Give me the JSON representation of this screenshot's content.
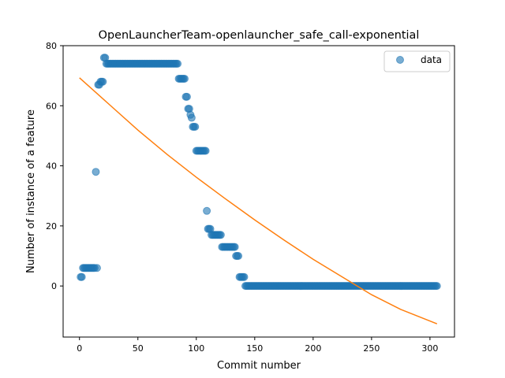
{
  "chart_data": {
    "type": "scatter",
    "title": "OpenLauncherTeam-openlauncher_safe_call-exponential",
    "xlabel": "Commit number",
    "ylabel": "Number of instance of a feature",
    "xlim": [
      -14,
      321
    ],
    "ylim": [
      -17,
      80
    ],
    "xticks": [
      0,
      50,
      100,
      150,
      200,
      250,
      300
    ],
    "yticks": [
      0,
      20,
      40,
      60,
      80
    ],
    "grid": false,
    "legend": {
      "position": "top-right",
      "entries": [
        "data"
      ]
    },
    "colors": {
      "data": "#1f77b4",
      "fit": "#ff7f0e"
    },
    "series": [
      {
        "name": "data",
        "kind": "points",
        "segments": [
          {
            "x_from": 1,
            "x_to": 2,
            "y": 3
          },
          {
            "x_from": 3,
            "x_to": 13,
            "y": 6
          },
          {
            "x_from": 14,
            "x_to": 14,
            "y": 38
          },
          {
            "x_from": 15,
            "x_to": 15,
            "y": 6
          },
          {
            "x_from": 16,
            "x_to": 17,
            "y": 67
          },
          {
            "x_from": 18,
            "x_to": 20,
            "y": 68
          },
          {
            "x_from": 21,
            "x_to": 22,
            "y": 76
          },
          {
            "x_from": 23,
            "x_to": 84,
            "y": 74
          },
          {
            "x_from": 85,
            "x_to": 90,
            "y": 69
          },
          {
            "x_from": 91,
            "x_to": 92,
            "y": 63
          },
          {
            "x_from": 93,
            "x_to": 94,
            "y": 59
          },
          {
            "x_from": 95,
            "x_to": 95,
            "y": 57
          },
          {
            "x_from": 96,
            "x_to": 96,
            "y": 56
          },
          {
            "x_from": 97,
            "x_to": 99,
            "y": 53
          },
          {
            "x_from": 100,
            "x_to": 108,
            "y": 45
          },
          {
            "x_from": 109,
            "x_to": 109,
            "y": 25
          },
          {
            "x_from": 110,
            "x_to": 112,
            "y": 19
          },
          {
            "x_from": 113,
            "x_to": 121,
            "y": 17
          },
          {
            "x_from": 122,
            "x_to": 133,
            "y": 13
          },
          {
            "x_from": 134,
            "x_to": 136,
            "y": 10
          },
          {
            "x_from": 137,
            "x_to": 141,
            "y": 3
          },
          {
            "x_from": 142,
            "x_to": 306,
            "y": 0
          }
        ]
      },
      {
        "kind": "line",
        "x": [
          0,
          25,
          50,
          75,
          100,
          125,
          150,
          175,
          200,
          225,
          250,
          275,
          306
        ],
        "values": [
          69.3,
          60.6,
          51.9,
          43.8,
          36.2,
          29.0,
          22.0,
          15.3,
          8.9,
          3.0,
          -2.9,
          -7.8,
          -12.6
        ]
      }
    ]
  }
}
